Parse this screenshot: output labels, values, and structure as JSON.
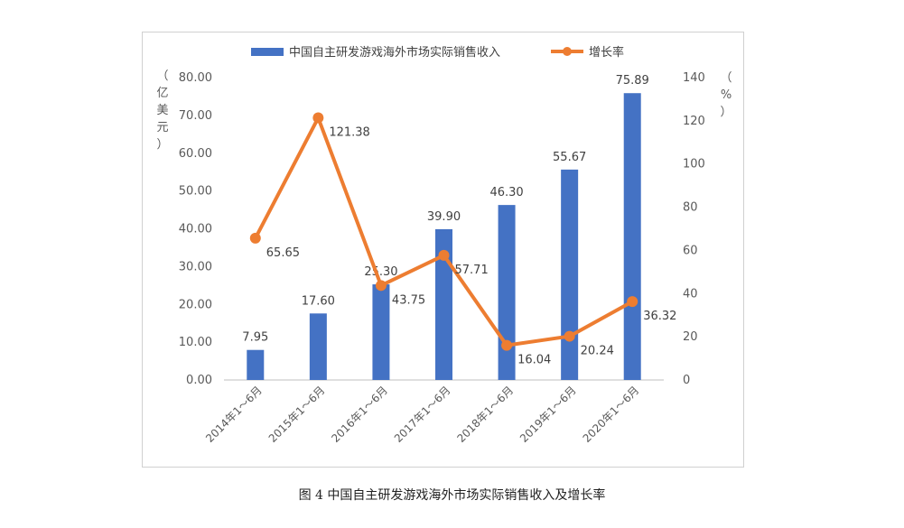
{
  "caption": "图 4 中国自主研发游戏海外市场实际销售收入及增长率",
  "chart_data": {
    "type": "bar+line",
    "categories": [
      "2014年1～6月",
      "2015年1～6月",
      "2016年1～6月",
      "2017年1～6月",
      "2018年1～6月",
      "2019年1～6月",
      "2020年1～6月"
    ],
    "series": [
      {
        "name": "中国自主研发游戏海外市场实际销售收入",
        "type": "bar",
        "axis": "left",
        "values": [
          7.95,
          17.6,
          25.3,
          39.9,
          46.3,
          55.67,
          75.89
        ],
        "labels": [
          "7.95",
          "17.60",
          "25.30",
          "39.90",
          "46.30",
          "55.67",
          "75.89"
        ],
        "color": "#4472c4"
      },
      {
        "name": "增长率",
        "type": "line",
        "axis": "right",
        "values": [
          65.65,
          121.38,
          43.75,
          57.71,
          16.04,
          20.24,
          36.32
        ],
        "labels": [
          "65.65",
          "121.38",
          "43.75",
          "57.71",
          "16.04",
          "20.24",
          "36.32"
        ],
        "color": "#ed7d31"
      }
    ],
    "y_left": {
      "label": "（亿美元）",
      "range": [
        0,
        80
      ],
      "ticks": [
        "0.00",
        "10.00",
        "20.00",
        "30.00",
        "40.00",
        "50.00",
        "60.00",
        "70.00",
        "80.00"
      ]
    },
    "y_right": {
      "label": "（%）",
      "range": [
        0,
        140
      ],
      "ticks": [
        "0",
        "20",
        "40",
        "60",
        "80",
        "100",
        "120",
        "140"
      ]
    },
    "legend_position": "top",
    "grid": false
  }
}
